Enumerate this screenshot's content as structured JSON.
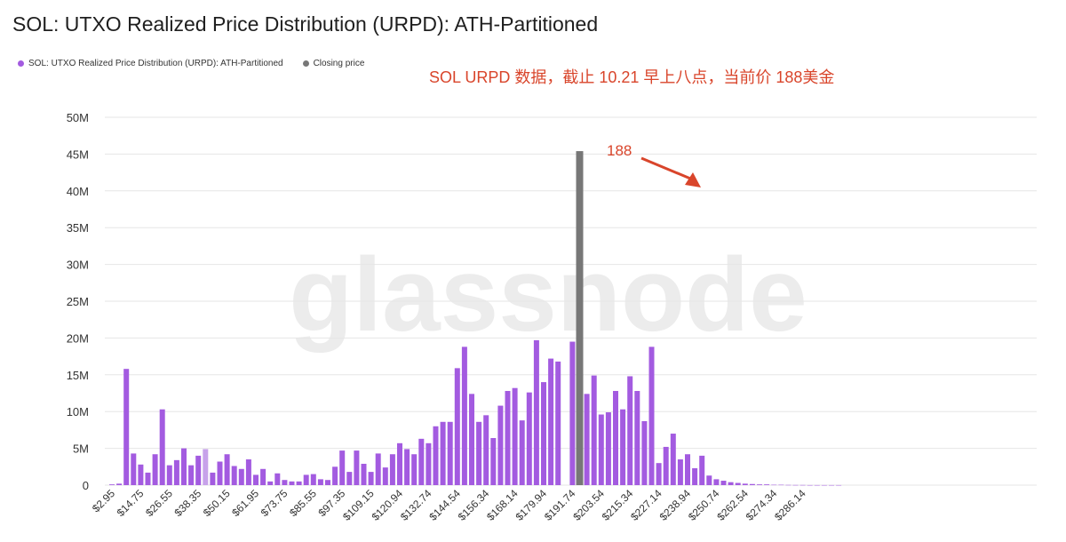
{
  "title": "SOL: UTXO Realized Price Distribution (URPD): ATH-Partitioned",
  "legend": [
    {
      "label": "SOL: UTXO Realized Price Distribution (URPD): ATH-Partitioned",
      "color": "#a35be0"
    },
    {
      "label": "Closing price",
      "color": "#777777"
    }
  ],
  "annotation": "SOL URPD 数据，截止 10.21 早上八点，当前价 188美金",
  "arrow_label": "188",
  "watermark": "glassnode",
  "colors": {
    "bar": "#a35be0",
    "closing": "#777777",
    "light_bar": "#c7a2ea",
    "accent": "#d9452b",
    "grid": "#e6e6e6"
  },
  "chart_data": {
    "type": "bar",
    "title": "SOL: UTXO Realized Price Distribution (URPD): ATH-Partitioned",
    "xlabel": "",
    "ylabel": "",
    "ylim": [
      0,
      50000000
    ],
    "y_ticks": [
      "0",
      "5M",
      "10M",
      "15M",
      "20M",
      "25M",
      "30M",
      "35M",
      "40M",
      "45M",
      "50M"
    ],
    "x_tick_labels": [
      "$2.95",
      "$14.75",
      "$26.55",
      "$38.35",
      "$50.15",
      "$61.95",
      "$73.75",
      "$85.55",
      "$97.35",
      "$109.15",
      "$120.94",
      "$132.74",
      "$144.54",
      "$156.34",
      "$168.14",
      "$179.94",
      "$191.74",
      "$203.54",
      "$215.34",
      "$227.14",
      "$238.94",
      "$250.74",
      "$262.54",
      "$274.34",
      "$286.14"
    ],
    "grid": true,
    "legend_position": "top-left",
    "closing_price": {
      "label": "Closing price",
      "bin_index": 65,
      "value": 45400000
    },
    "series": [
      {
        "name": "SOL: UTXO Realized Price Distribution (URPD): ATH-Partitioned",
        "values": [
          0.1,
          0.2,
          15.8,
          4.3,
          2.8,
          1.7,
          4.2,
          10.3,
          2.7,
          3.4,
          5.0,
          2.7,
          4.0,
          4.9,
          1.7,
          3.2,
          4.2,
          2.6,
          2.2,
          3.5,
          1.4,
          2.2,
          0.5,
          1.6,
          0.7,
          0.5,
          0.5,
          1.4,
          1.5,
          0.8,
          0.7,
          2.5,
          4.7,
          1.8,
          4.7,
          2.9,
          1.8,
          4.3,
          2.4,
          4.2,
          5.7,
          4.9,
          4.2,
          6.3,
          5.7,
          8.0,
          8.6,
          8.6,
          15.9,
          18.8,
          12.4,
          8.6,
          9.5,
          6.4,
          10.8,
          12.8,
          13.2,
          8.8,
          12.6,
          19.7,
          14.0,
          17.2,
          16.8,
          0,
          19.5,
          13.4,
          12.4,
          14.9,
          9.6,
          9.9,
          12.8,
          10.3,
          14.8,
          12.8,
          8.7,
          18.8,
          3.0,
          5.2,
          7.0,
          3.5,
          4.2,
          2.3,
          4.0,
          1.3,
          0.8,
          0.6,
          0.4,
          0.3,
          0.2,
          0.15,
          0.1,
          0.1,
          0.05,
          0.05,
          0.03,
          0.02,
          0.02,
          0.01,
          0.01,
          0.01,
          0.01,
          0.01
        ],
        "unit": "M"
      }
    ]
  }
}
